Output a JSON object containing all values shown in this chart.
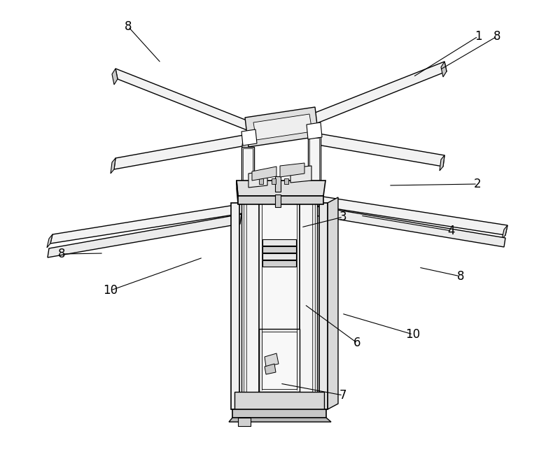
{
  "background_color": "#ffffff",
  "line_color": "#000000",
  "figsize": [
    8.0,
    6.46
  ],
  "dpi": 100,
  "labels": [
    [
      "1",
      683,
      52,
      590,
      110
    ],
    [
      "2",
      682,
      263,
      555,
      265
    ],
    [
      "3",
      490,
      310,
      430,
      325
    ],
    [
      "4",
      645,
      330,
      515,
      308
    ],
    [
      "6",
      510,
      490,
      435,
      435
    ],
    [
      "7",
      490,
      565,
      400,
      548
    ],
    [
      "8",
      183,
      38,
      230,
      90
    ],
    [
      "8",
      710,
      52,
      628,
      100
    ],
    [
      "8",
      88,
      363,
      148,
      362
    ],
    [
      "8",
      658,
      395,
      598,
      382
    ],
    [
      "10",
      158,
      415,
      290,
      368
    ],
    [
      "10",
      590,
      478,
      488,
      448
    ]
  ]
}
